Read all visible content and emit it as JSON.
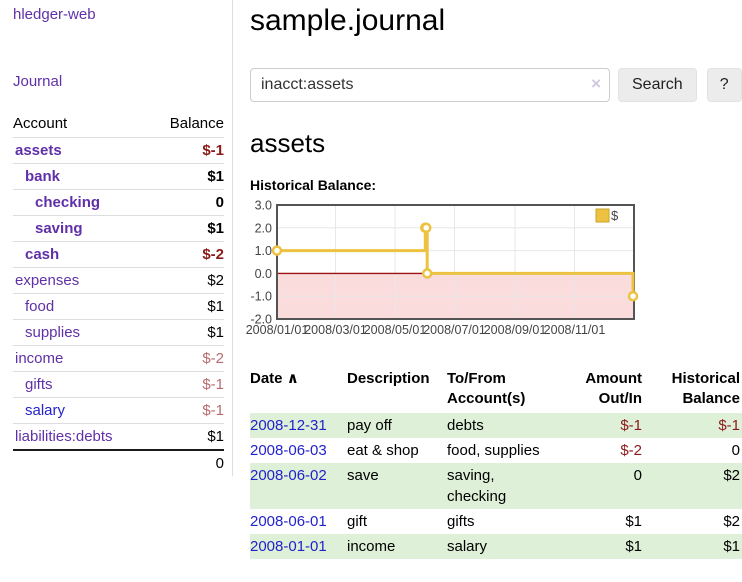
{
  "sidebar": {
    "brand": "hledger-web",
    "nav_journal": "Journal",
    "accounts_table": {
      "col_account": "Account",
      "col_balance": "Balance",
      "rows": [
        {
          "name": "assets",
          "balance": "$-1",
          "level": 1,
          "bold": true,
          "balance_style": "neg-strong",
          "link_color": "purple"
        },
        {
          "name": "bank",
          "balance": "$1",
          "level": 2,
          "bold": true,
          "balance_style": "pos",
          "link_color": "purple"
        },
        {
          "name": "checking",
          "balance": "0",
          "level": 3,
          "bold": true,
          "balance_style": "pos",
          "link_color": "purple"
        },
        {
          "name": "saving",
          "balance": "$1",
          "level": 3,
          "bold": true,
          "balance_style": "pos",
          "link_color": "purple"
        },
        {
          "name": "cash",
          "balance": "$-2",
          "level": 2,
          "bold": true,
          "balance_style": "neg-strong",
          "link_color": "purple"
        },
        {
          "name": "expenses",
          "balance": "$2",
          "level": 1,
          "bold": false,
          "balance_style": "pos",
          "link_color": "purple"
        },
        {
          "name": "food",
          "balance": "$1",
          "level": 2,
          "bold": false,
          "balance_style": "pos",
          "link_color": "purple"
        },
        {
          "name": "supplies",
          "balance": "$1",
          "level": 2,
          "bold": false,
          "balance_style": "pos",
          "link_color": "purple"
        },
        {
          "name": "income",
          "balance": "$-2",
          "level": 1,
          "bold": false,
          "balance_style": "neg-muted",
          "link_color": "purple"
        },
        {
          "name": "gifts",
          "balance": "$-1",
          "level": 2,
          "bold": false,
          "balance_style": "neg-muted",
          "link_color": "purple"
        },
        {
          "name": "salary",
          "balance": "$-1",
          "level": 2,
          "bold": false,
          "balance_style": "neg-muted",
          "link_color": "blue"
        },
        {
          "name": "liabilities:debts",
          "balance": "$1",
          "level": 1,
          "bold": false,
          "balance_style": "pos",
          "link_color": "purple"
        }
      ],
      "total": "0"
    }
  },
  "header": {
    "title": "sample.journal"
  },
  "search": {
    "value": "inacct:assets",
    "clear_icon": "×",
    "button_label": "Search",
    "help_label": "?"
  },
  "account_page": {
    "heading": "assets",
    "chart_title": "Historical Balance:"
  },
  "chart_data": {
    "type": "line",
    "step": true,
    "title": "Historical Balance",
    "series": [
      {
        "name": "$",
        "color": "#edc240",
        "points": [
          [
            "2008-01-01",
            1
          ],
          [
            "2008-06-01",
            2
          ],
          [
            "2008-06-02",
            2
          ],
          [
            "2008-06-03",
            0
          ],
          [
            "2008-12-31",
            -1
          ]
        ]
      }
    ],
    "ylim": [
      -2,
      3
    ],
    "yticks": [
      "3.0",
      "2.0",
      "1.0",
      "0.0",
      "-1.0",
      "-2.0"
    ],
    "ytick_values": [
      3,
      2,
      1,
      0,
      -1,
      -2
    ],
    "xticks": [
      "2008/01/01",
      "2008/03/01",
      "2008/05/01",
      "2008/07/01",
      "2008/09/01",
      "2008/11/01"
    ],
    "xtick_dates": [
      "2008-01-01",
      "2008-03-01",
      "2008-05-01",
      "2008-07-01",
      "2008-09-01",
      "2008-11-01"
    ],
    "xrange": [
      "2008-01-01",
      "2009-01-01"
    ],
    "legend": "$",
    "legend_position": "top-right",
    "grid": true,
    "colors": {
      "grid": "#e7e7e7",
      "border": "#545454",
      "zero_line": "#9b1212",
      "negative_region": "#fbdcdc",
      "tick_text": "#444444",
      "marker_fill": "#ffffff"
    }
  },
  "register": {
    "headers": {
      "date": "Date",
      "sort_icon": "∧",
      "description": "Description",
      "account": "To/From Account(s)",
      "amount": "Amount Out/In",
      "balance": "Historical Balance"
    },
    "rows": [
      {
        "date": "2008-12-31",
        "description": "pay off",
        "accounts": "debts",
        "amount": "$-1",
        "amount_neg": true,
        "balance": "$-1",
        "balance_neg": true,
        "shaded": true
      },
      {
        "date": "2008-06-03",
        "description": "eat & shop",
        "accounts": "food, supplies",
        "amount": "$-2",
        "amount_neg": true,
        "balance": "0",
        "balance_neg": false,
        "shaded": false
      },
      {
        "date": "2008-06-02",
        "description": "save",
        "accounts": "saving, checking",
        "amount": "0",
        "amount_neg": false,
        "balance": "$2",
        "balance_neg": false,
        "shaded": true
      },
      {
        "date": "2008-06-01",
        "description": "gift",
        "accounts": "gifts",
        "amount": "$1",
        "amount_neg": false,
        "balance": "$2",
        "balance_neg": false,
        "shaded": false
      },
      {
        "date": "2008-01-01",
        "description": "income",
        "accounts": "salary",
        "amount": "$1",
        "amount_neg": false,
        "balance": "$1",
        "balance_neg": false,
        "shaded": true
      }
    ]
  }
}
